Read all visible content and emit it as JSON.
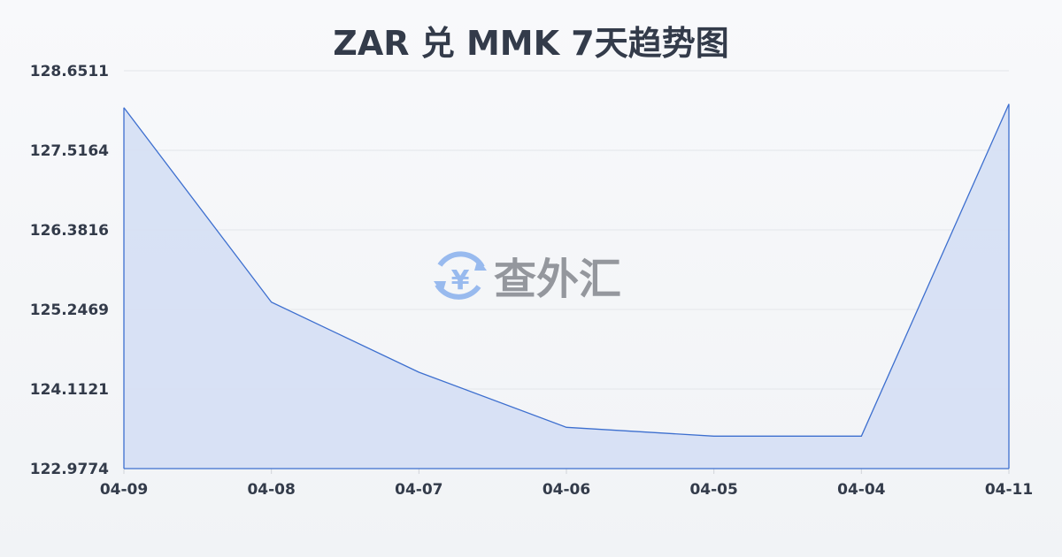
{
  "chart_data": {
    "type": "area",
    "title": "ZAR 兑 MMK 7天趋势图",
    "categories": [
      "04-09",
      "04-08",
      "04-07",
      "04-06",
      "04-05",
      "04-04",
      "04-11"
    ],
    "values": [
      128.125,
      125.351,
      124.352,
      123.566,
      123.44,
      123.44,
      128.176
    ],
    "ylim": [
      122.9774,
      128.6511
    ],
    "yticks": [
      "128.6511",
      "127.5164",
      "126.3816",
      "125.2469",
      "124.1121",
      "122.9774"
    ],
    "grid": true,
    "line_color": "#3d6fcf",
    "fill_color": "#d5dff4"
  },
  "watermark": {
    "text": "查外汇",
    "icon": "yen-exchange-icon",
    "icon_color": "#8fb4ee"
  }
}
